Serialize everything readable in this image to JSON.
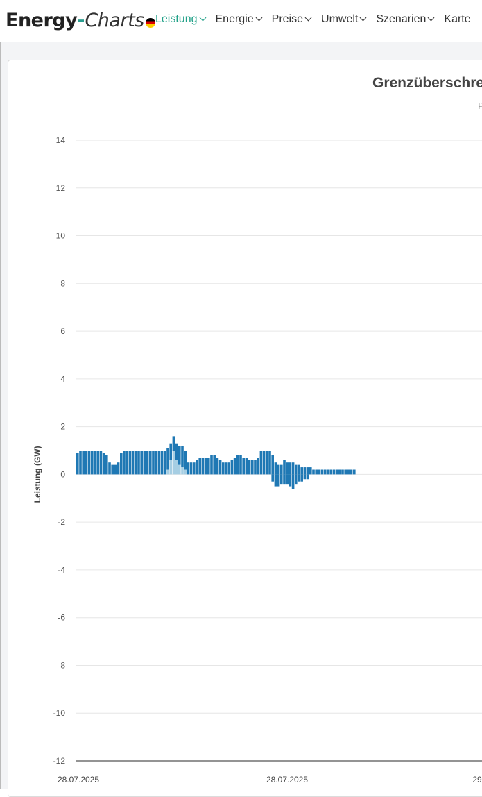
{
  "header": {
    "logo_main": "Energy",
    "logo_dash": "-",
    "logo_italic": "Charts",
    "nav": [
      {
        "label": "Leistung",
        "active": true
      },
      {
        "label": "Energie",
        "active": false
      },
      {
        "label": "Preise",
        "active": false
      },
      {
        "label": "Umwelt",
        "active": false
      },
      {
        "label": "Szenarien",
        "active": false
      },
      {
        "label": "Karte",
        "active": false
      }
    ]
  },
  "colors": {
    "accent": "#1fa087",
    "series": [
      "#a6cee3",
      "#1f78b4",
      "#b2df8a",
      "#33a02c",
      "#fb9a99",
      "#e31a1c",
      "#fdbf6f",
      "#ff7f00",
      "#cab2d6",
      "#6a3d9a",
      "#ffff99"
    ]
  },
  "chart_data": {
    "type": "bar",
    "stacked": true,
    "title": "Grenzüberschre",
    "subtitle": "P",
    "ylabel": "Leistung (GW)",
    "ylim": [
      -12,
      14
    ],
    "yticks": [
      14,
      12,
      10,
      8,
      6,
      4,
      2,
      0,
      -2,
      -4,
      -6,
      -8,
      -10,
      -12
    ],
    "xticklabels": [
      "28.07.2025",
      "28.07.2025",
      "29"
    ],
    "grid": true,
    "bar_count": 96,
    "series": [
      {
        "color": "#a6cee3",
        "pos": [
          0,
          0,
          0,
          0,
          0,
          0,
          0,
          0,
          0,
          0,
          0,
          0,
          0,
          0,
          0,
          0,
          0,
          0,
          0,
          0,
          0,
          0,
          0,
          0,
          0,
          0,
          0,
          0,
          0,
          0,
          0,
          0.2,
          0.6,
          1.0,
          0.6,
          0.4,
          0.3,
          0.2,
          0,
          0,
          0,
          0,
          0,
          0,
          0,
          0,
          0,
          0,
          0,
          0,
          0,
          0,
          0,
          0,
          0,
          0,
          0,
          0,
          0,
          0,
          0,
          0,
          0,
          0,
          0,
          0,
          0,
          0,
          0,
          0,
          0,
          0,
          0,
          0,
          0,
          0,
          0,
          0,
          0,
          0,
          0,
          0,
          0,
          0,
          0,
          0,
          0,
          0,
          0,
          0,
          0,
          0,
          0,
          0,
          0,
          0
        ],
        "neg": [
          0,
          0,
          0,
          0,
          0,
          0,
          0,
          0,
          0,
          0,
          0,
          0,
          0,
          0,
          0,
          0,
          0,
          0,
          0,
          0,
          0,
          0,
          0,
          0,
          0,
          0,
          0,
          0,
          0,
          0,
          0,
          0,
          0,
          0,
          0,
          0,
          0,
          0,
          0,
          0,
          0,
          0,
          0,
          0,
          0,
          0,
          0,
          0,
          0,
          0,
          0,
          0,
          0,
          0,
          0,
          0,
          0,
          0,
          0,
          0,
          0,
          0,
          0,
          0,
          0,
          0,
          0,
          0,
          0,
          0,
          0,
          0,
          0,
          0,
          0,
          0,
          0,
          0,
          0,
          0,
          0,
          0,
          0,
          0,
          0,
          0,
          0,
          0,
          0,
          0,
          0,
          0,
          0,
          0,
          0,
          0
        ]
      },
      {
        "color": "#1f78b4",
        "pos": [
          0.9,
          1.0,
          1.0,
          1.0,
          1.0,
          1.0,
          1.0,
          1.0,
          1.0,
          0.9,
          0.8,
          0.5,
          0.4,
          0.4,
          0.5,
          0.9,
          1.0,
          1.0,
          1.0,
          1.0,
          1.0,
          1.0,
          1.0,
          1.0,
          1.0,
          1.0,
          1.0,
          1.0,
          1.0,
          1.0,
          1.0,
          0.9,
          0.7,
          0.6,
          0.7,
          0.8,
          0.9,
          0.8,
          0.5,
          0.5,
          0.5,
          0.6,
          0.7,
          0.7,
          0.7,
          0.7,
          0.8,
          0.8,
          0.7,
          0.6,
          0.5,
          0.5,
          0.5,
          0.6,
          0.7,
          0.8,
          0.8,
          0.7,
          0.7,
          0.6,
          0.6,
          0.6,
          0.7,
          1.0,
          1.0,
          1.0,
          1.0,
          0.8,
          0.5,
          0.4,
          0.4,
          0.6,
          0.5,
          0.5,
          0.5,
          0.4,
          0.4,
          0.3,
          0.3,
          0.3,
          0.3,
          0.2,
          0.2,
          0.2,
          0.2,
          0.2,
          0.2,
          0.2,
          0.2,
          0.2,
          0.2,
          0.2,
          0.2,
          0.2,
          0.2,
          0.2
        ],
        "neg": [
          0,
          0,
          0,
          0,
          0,
          0,
          0,
          0,
          0,
          0,
          0,
          0,
          0,
          0,
          0,
          0,
          0,
          0,
          0,
          0,
          0,
          0,
          0,
          0,
          0,
          0,
          0,
          0,
          0,
          0,
          0,
          0,
          0,
          0,
          0,
          0,
          0,
          0,
          0,
          0,
          0,
          0,
          0,
          0,
          0,
          0,
          0,
          0,
          0,
          0,
          0,
          0,
          0,
          0,
          0,
          0,
          0,
          0,
          0,
          0,
          0,
          0,
          0,
          0,
          0,
          0,
          0,
          0.3,
          0.5,
          0.5,
          0.4,
          0.4,
          0.4,
          0.5,
          0.6,
          0.4,
          0.3,
          0.3,
          0.2,
          0.2,
          0,
          0,
          0,
          0,
          0,
          0,
          0,
          0,
          0,
          0,
          0,
          0,
          0,
          0,
          0,
          0
        ]
      }
    ]
  }
}
